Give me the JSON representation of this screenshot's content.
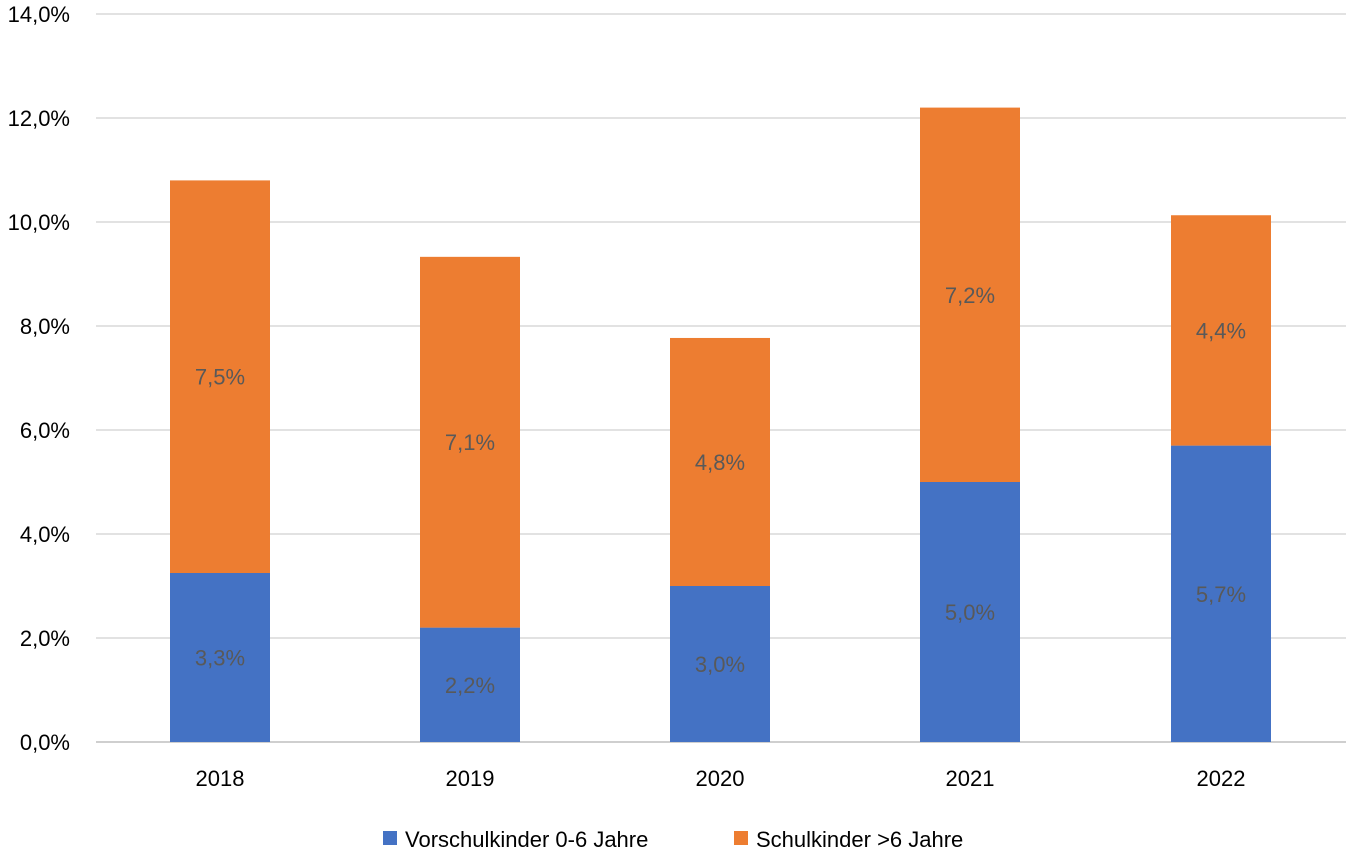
{
  "chart_data": {
    "type": "bar",
    "stacked": true,
    "title": "",
    "xlabel": "",
    "ylabel": "",
    "categories": [
      "2018",
      "2019",
      "2020",
      "2021",
      "2022"
    ],
    "ylim": [
      0,
      14
    ],
    "yticks": [
      0,
      2,
      4,
      6,
      8,
      10,
      12,
      14
    ],
    "ytick_labels": [
      "0,0%",
      "2,0%",
      "4,0%",
      "6,0%",
      "8,0%",
      "10,0%",
      "12,0%",
      "14,0%"
    ],
    "grid": true,
    "legend_position": "bottom",
    "series": [
      {
        "name": "Vorschulkinder 0-6 Jahre",
        "color": "#4472C4",
        "values": [
          3.25,
          2.2,
          3.0,
          5.0,
          5.7
        ],
        "labels": [
          "3,3%",
          "2,2%",
          "3,0%",
          "5,0%",
          "5,7%"
        ]
      },
      {
        "name": "Schulkinder >6 Jahre",
        "color": "#ED7D31",
        "values": [
          7.55,
          7.13,
          4.77,
          7.2,
          4.43
        ],
        "labels": [
          "7,5%",
          "7,1%",
          "4,8%",
          "7,2%",
          "4,4%"
        ]
      }
    ]
  }
}
